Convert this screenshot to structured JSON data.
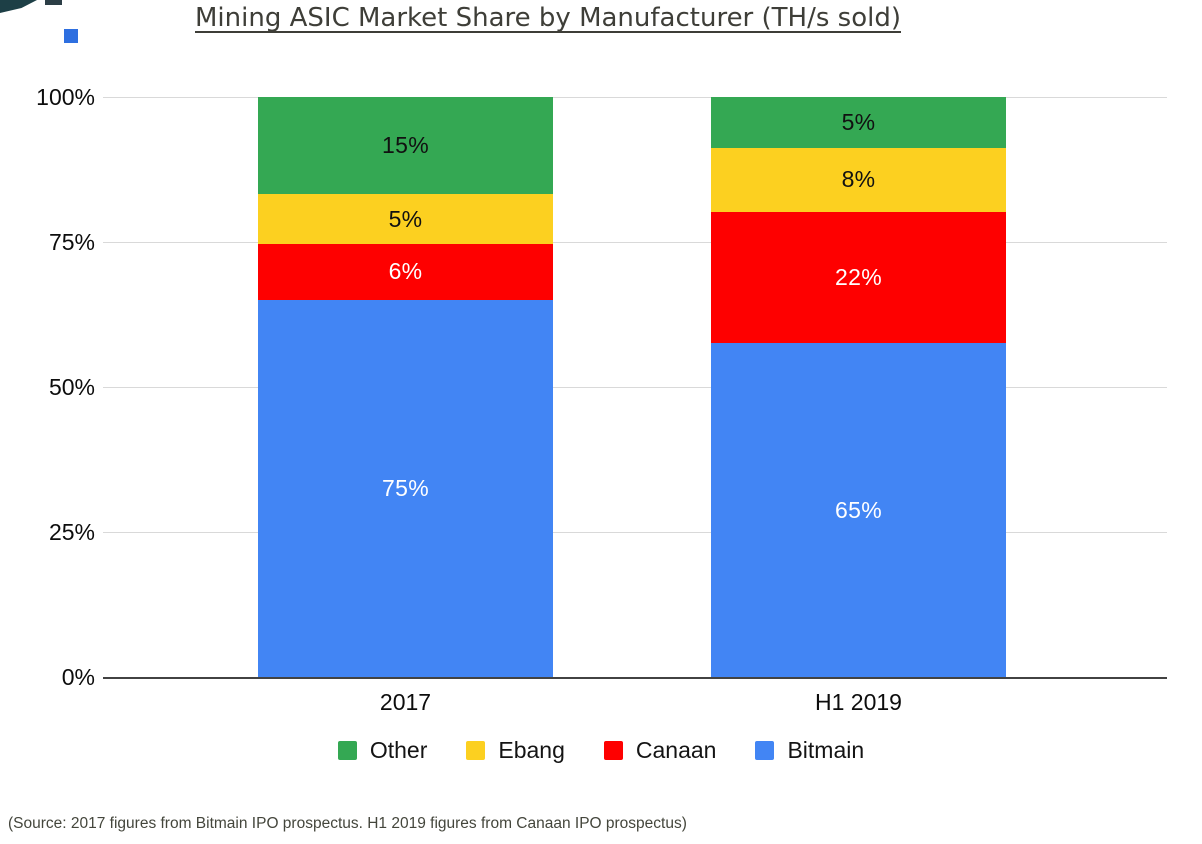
{
  "title": "Mining ASIC Market Share by Manufacturer (TH/s sold)",
  "source_note": "(Source: 2017 figures from Bitmain IPO prospectus. H1 2019 figures from Canaan IPO prospectus)",
  "colors": {
    "bitmain_blue": "#4285f4",
    "canaan_red": "#fe0000",
    "ebang_yellow": "#fcd020",
    "other_green": "#34a853",
    "gridline": "#d9d9d9",
    "axis": "#424242",
    "title_text": "#3e3e38"
  },
  "chart_data": {
    "type": "bar",
    "subtype": "stacked-percentage-column",
    "title": "Mining ASIC Market Share by Manufacturer (TH/s sold)",
    "xlabel": "",
    "ylabel": "",
    "categories": [
      "2017",
      "H1 2019"
    ],
    "series": [
      {
        "name": "Bitmain",
        "color": "#4285f4",
        "label_color": "#ffffff",
        "values": [
          75,
          65
        ]
      },
      {
        "name": "Canaan",
        "color": "#fe0000",
        "label_color": "#ffffff",
        "values": [
          6,
          22
        ]
      },
      {
        "name": "Ebang",
        "color": "#fcd020",
        "label_color": "#111111",
        "values": [
          5,
          8
        ]
      },
      {
        "name": "Other",
        "color": "#34a853",
        "label_color": "#111111",
        "values": [
          15,
          5
        ]
      }
    ],
    "data_label_format": "{value}%",
    "y_ticks": [
      {
        "label": "100%",
        "value": 100
      },
      {
        "label": "75%",
        "value": 75
      },
      {
        "label": "50%",
        "value": 50
      },
      {
        "label": "25%",
        "value": 25
      },
      {
        "label": "0%",
        "value": 0
      }
    ],
    "ylim": [
      0,
      100
    ],
    "grid": true,
    "legend_position": "bottom",
    "legend_order": [
      "Other",
      "Ebang",
      "Canaan",
      "Bitmain"
    ]
  }
}
